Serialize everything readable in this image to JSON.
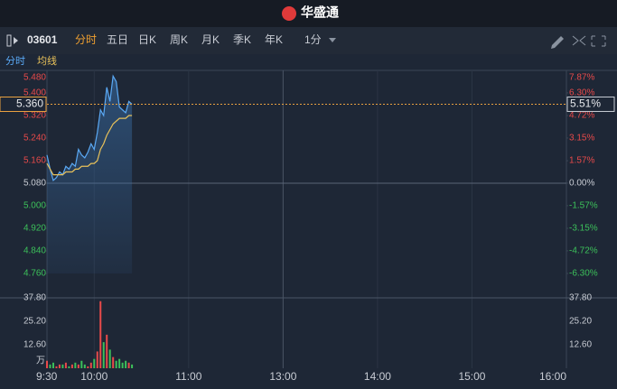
{
  "header": {
    "title": "华盛通"
  },
  "toolbar": {
    "code": "03601",
    "tabs": [
      "分时",
      "五日",
      "日K",
      "周K",
      "月K",
      "季K",
      "年K"
    ],
    "interval": "1分"
  },
  "chart_data": [
    {
      "type": "line",
      "x": [
        0,
        2,
        4,
        6,
        8,
        10,
        12,
        14,
        16,
        18,
        20,
        22,
        24,
        26,
        28,
        30,
        32,
        34,
        36,
        38,
        40,
        42,
        44,
        46,
        48,
        50,
        52,
        54
      ],
      "series": [
        {
          "name": "分时",
          "color": "#5aa9f5",
          "values": [
            5.18,
            5.13,
            5.09,
            5.1,
            5.12,
            5.11,
            5.14,
            5.13,
            5.15,
            5.14,
            5.2,
            5.18,
            5.17,
            5.19,
            5.22,
            5.2,
            5.26,
            5.34,
            5.32,
            5.42,
            5.37,
            5.46,
            5.44,
            5.35,
            5.34,
            5.33,
            5.37,
            5.36
          ]
        },
        {
          "name": "均线",
          "color": "#e8c15a",
          "values": [
            5.15,
            5.13,
            5.11,
            5.11,
            5.11,
            5.11,
            5.12,
            5.12,
            5.12,
            5.13,
            5.13,
            5.14,
            5.14,
            5.14,
            5.15,
            5.15,
            5.16,
            5.2,
            5.22,
            5.25,
            5.27,
            5.29,
            5.3,
            5.31,
            5.31,
            5.31,
            5.32,
            5.32
          ]
        }
      ],
      "xlim": [
        0,
        330
      ],
      "xticks": [
        {
          "value": 0,
          "label": "9:30"
        },
        {
          "value": 30,
          "label": "10:00"
        },
        {
          "value": 90,
          "label": "11:00"
        },
        {
          "value": 150,
          "label": "13:00"
        },
        {
          "value": 210,
          "label": "14:00"
        },
        {
          "value": 270,
          "label": "15:00"
        },
        {
          "value": 330,
          "label": "16:00"
        }
      ],
      "ylim": [
        4.76,
        5.48
      ],
      "yticks": [
        {
          "value": 5.48,
          "label": "5.480"
        },
        {
          "value": 5.4,
          "label": "5.400"
        },
        {
          "value": 5.32,
          "label": "5.320"
        },
        {
          "value": 5.24,
          "label": "5.240"
        },
        {
          "value": 5.16,
          "label": "5.160"
        },
        {
          "value": 5.08,
          "label": "5.080"
        },
        {
          "value": 5.0,
          "label": "5.000"
        },
        {
          "value": 4.92,
          "label": "4.920"
        },
        {
          "value": 4.84,
          "label": "4.840"
        },
        {
          "value": 4.76,
          "label": "4.760"
        }
      ],
      "y2lim": [
        -6.3,
        7.87
      ],
      "y2ticks": [
        {
          "value": 7.87,
          "label": "7.87%"
        },
        {
          "value": 6.3,
          "label": "6.30%"
        },
        {
          "value": 4.72,
          "label": "4.72%"
        },
        {
          "value": 3.15,
          "label": "3.15%"
        },
        {
          "value": 1.57,
          "label": "1.57%"
        },
        {
          "value": 0,
          "label": "0.00%"
        },
        {
          "value": -1.57,
          "label": "-1.57%"
        },
        {
          "value": -3.15,
          "label": "-3.15%"
        },
        {
          "value": -4.72,
          "label": "-4.72%"
        },
        {
          "value": -6.3,
          "label": "-6.30%"
        }
      ],
      "last_price": {
        "value": 5.36,
        "label": "5.360"
      },
      "last_change": {
        "value": 5.51,
        "label": "5.51%"
      }
    },
    {
      "type": "bar",
      "x": [
        0,
        2,
        4,
        6,
        8,
        10,
        12,
        14,
        16,
        18,
        20,
        22,
        24,
        26,
        28,
        30,
        32,
        34,
        36,
        38,
        40,
        42,
        44,
        46,
        48,
        50,
        52,
        54
      ],
      "values": [
        4,
        2,
        3,
        1,
        2,
        2,
        3,
        1,
        2,
        3,
        2,
        4,
        2,
        1,
        3,
        5,
        9,
        36,
        14,
        18,
        10,
        6,
        4,
        5,
        3,
        4,
        3,
        2
      ],
      "xlim": [
        0,
        330
      ],
      "ylim": [
        0,
        37.8
      ],
      "yticks": [
        {
          "value": 12.6,
          "label": "12.60"
        },
        {
          "value": 25.2,
          "label": "25.20"
        },
        {
          "value": 37.8,
          "label": "37.80"
        }
      ],
      "unit": "万"
    }
  ]
}
